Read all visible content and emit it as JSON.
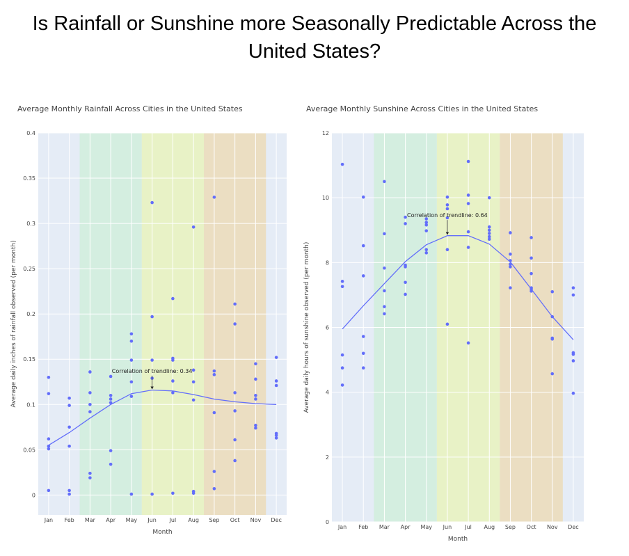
{
  "page": {
    "title_line1": "Is Rainfall or Sunshine more Seasonally Predictable Across the",
    "title_line2": "United States?"
  },
  "colors": {
    "plot_bg": "#e5ecf6",
    "grid": "#ffffff",
    "marker": "#636efa",
    "trend": "#636efa",
    "spring": "#d4eee0",
    "summer": "#e8f2c6",
    "autumn": "#ebdec2",
    "text": "#444444"
  },
  "chart_data": [
    {
      "type": "scatter",
      "title": "Average Monthly Rainfall Across Cities in the United States",
      "xlabel": "Month",
      "ylabel": "Average daily inches of rainfall observed (per month)",
      "categories": [
        "Jan",
        "Feb",
        "Mar",
        "Apr",
        "May",
        "Jun",
        "Jul",
        "Aug",
        "Sep",
        "Oct",
        "Nov",
        "Dec"
      ],
      "ylim": [
        -0.022,
        0.4
      ],
      "yticks": [
        0,
        0.05,
        0.1,
        0.15,
        0.2,
        0.25,
        0.3,
        0.35,
        0.4
      ],
      "ytick_labels": [
        "0",
        "0.05",
        "0.1",
        "0.15",
        "0.2",
        "0.25",
        "0.3",
        "0.35",
        "0.4"
      ],
      "grid": true,
      "season_bands": [
        {
          "season": "spring",
          "from": 1.5,
          "to": 4.5
        },
        {
          "season": "summer",
          "from": 4.5,
          "to": 7.5
        },
        {
          "season": "autumn",
          "from": 7.5,
          "to": 10.5
        }
      ],
      "points": [
        [
          0,
          0.13
        ],
        [
          0,
          0.112
        ],
        [
          0,
          0.062
        ],
        [
          0,
          0.054
        ],
        [
          0,
          0.051
        ],
        [
          0,
          0.005
        ],
        [
          1,
          0.107
        ],
        [
          1,
          0.099
        ],
        [
          1,
          0.075
        ],
        [
          1,
          0.054
        ],
        [
          1,
          0.005
        ],
        [
          1,
          0.001
        ],
        [
          2,
          0.136
        ],
        [
          2,
          0.113
        ],
        [
          2,
          0.1
        ],
        [
          2,
          0.092
        ],
        [
          2,
          0.024
        ],
        [
          2,
          0.019
        ],
        [
          3,
          0.131
        ],
        [
          3,
          0.11
        ],
        [
          3,
          0.106
        ],
        [
          3,
          0.102
        ],
        [
          3,
          0.049
        ],
        [
          3,
          0.034
        ],
        [
          4,
          0.178
        ],
        [
          4,
          0.17
        ],
        [
          4,
          0.149
        ],
        [
          4,
          0.125
        ],
        [
          4,
          0.109
        ],
        [
          4,
          0.001
        ],
        [
          5,
          0.323
        ],
        [
          5,
          0.197
        ],
        [
          5,
          0.149
        ],
        [
          5,
          0.129
        ],
        [
          5,
          0.001
        ],
        [
          6,
          0.217
        ],
        [
          6,
          0.151
        ],
        [
          6,
          0.149
        ],
        [
          6,
          0.126
        ],
        [
          6,
          0.113
        ],
        [
          6,
          0.002
        ],
        [
          7,
          0.296
        ],
        [
          7,
          0.138
        ],
        [
          7,
          0.125
        ],
        [
          7,
          0.105
        ],
        [
          7,
          0.004
        ],
        [
          7,
          0.002
        ],
        [
          8,
          0.329
        ],
        [
          8,
          0.137
        ],
        [
          8,
          0.133
        ],
        [
          8,
          0.091
        ],
        [
          8,
          0.026
        ],
        [
          8,
          0.007
        ],
        [
          9,
          0.211
        ],
        [
          9,
          0.189
        ],
        [
          9,
          0.113
        ],
        [
          9,
          0.093
        ],
        [
          9,
          0.061
        ],
        [
          9,
          0.038
        ],
        [
          10,
          0.145
        ],
        [
          10,
          0.128
        ],
        [
          10,
          0.11
        ],
        [
          10,
          0.106
        ],
        [
          10,
          0.077
        ],
        [
          10,
          0.074
        ],
        [
          11,
          0.152
        ],
        [
          11,
          0.126
        ],
        [
          11,
          0.121
        ],
        [
          11,
          0.068
        ],
        [
          11,
          0.066
        ],
        [
          11,
          0.063
        ]
      ],
      "trendline": [
        0.055,
        0.069,
        0.085,
        0.1,
        0.112,
        0.116,
        0.115,
        0.111,
        0.106,
        0.103,
        0.101,
        0.1
      ],
      "annotation": {
        "text": "Correlation of trendline: 0.34",
        "x": 5,
        "y": 0.116,
        "label_y": 0.135
      }
    },
    {
      "type": "scatter",
      "title": "Average Monthly Sunshine Across Cities in the United States",
      "xlabel": "Month",
      "ylabel": "Average daily hours of sunshine observed (per month)",
      "categories": [
        "Jan",
        "Feb",
        "Mar",
        "Apr",
        "May",
        "Jun",
        "Jul",
        "Aug",
        "Sep",
        "Oct",
        "Nov",
        "Dec"
      ],
      "ylim": [
        0,
        12
      ],
      "yticks": [
        0,
        2,
        4,
        6,
        8,
        10,
        12
      ],
      "ytick_labels": [
        "0",
        "2",
        "4",
        "6",
        "8",
        "10",
        "12"
      ],
      "grid": true,
      "season_bands": [
        {
          "season": "spring",
          "from": 1.5,
          "to": 4.5
        },
        {
          "season": "summer",
          "from": 4.5,
          "to": 7.5
        },
        {
          "season": "autumn",
          "from": 7.5,
          "to": 10.5
        }
      ],
      "points": [
        [
          0,
          11.03
        ],
        [
          0,
          7.42
        ],
        [
          0,
          7.26
        ],
        [
          0,
          5.15
        ],
        [
          0,
          4.75
        ],
        [
          0,
          4.22
        ],
        [
          1,
          10.02
        ],
        [
          1,
          8.52
        ],
        [
          1,
          7.59
        ],
        [
          1,
          5.72
        ],
        [
          1,
          5.2
        ],
        [
          1,
          4.75
        ],
        [
          2,
          10.5
        ],
        [
          2,
          8.89
        ],
        [
          2,
          7.83
        ],
        [
          2,
          7.13
        ],
        [
          2,
          6.64
        ],
        [
          2,
          6.42
        ],
        [
          3,
          9.4
        ],
        [
          3,
          9.2
        ],
        [
          3,
          7.92
        ],
        [
          3,
          7.87
        ],
        [
          3,
          7.39
        ],
        [
          3,
          7.02
        ],
        [
          4,
          9.35
        ],
        [
          4,
          9.24
        ],
        [
          4,
          9.16
        ],
        [
          4,
          8.98
        ],
        [
          4,
          8.4
        ],
        [
          4,
          8.3
        ],
        [
          5,
          10.02
        ],
        [
          5,
          9.78
        ],
        [
          5,
          9.66
        ],
        [
          5,
          9.38
        ],
        [
          5,
          8.4
        ],
        [
          5,
          6.1
        ],
        [
          6,
          11.12
        ],
        [
          6,
          10.08
        ],
        [
          6,
          9.82
        ],
        [
          6,
          8.95
        ],
        [
          6,
          8.47
        ],
        [
          6,
          5.52
        ],
        [
          7,
          10
        ],
        [
          7,
          9.1
        ],
        [
          7,
          9.0
        ],
        [
          7,
          8.9
        ],
        [
          7,
          8.8
        ],
        [
          7,
          8.72
        ],
        [
          8,
          8.92
        ],
        [
          8,
          8.26
        ],
        [
          8,
          8.06
        ],
        [
          8,
          7.95
        ],
        [
          8,
          7.87
        ],
        [
          8,
          7.22
        ],
        [
          9,
          8.77
        ],
        [
          9,
          8.14
        ],
        [
          9,
          7.66
        ],
        [
          9,
          7.22
        ],
        [
          9,
          7.18
        ],
        [
          9,
          7.12
        ],
        [
          10,
          7.1
        ],
        [
          10,
          6.33
        ],
        [
          10,
          5.67
        ],
        [
          10,
          5.64
        ],
        [
          10,
          4.57
        ],
        [
          11,
          7.22
        ],
        [
          11,
          7.0
        ],
        [
          11,
          5.22
        ],
        [
          11,
          5.17
        ],
        [
          11,
          4.97
        ],
        [
          11,
          3.97
        ]
      ],
      "trendline": [
        5.95,
        6.67,
        7.35,
        8.03,
        8.55,
        8.83,
        8.83,
        8.57,
        8.02,
        7.18,
        6.33,
        5.62
      ],
      "annotation": {
        "text": "Correlation of trendline: 0.64",
        "x": 5,
        "y": 8.83,
        "label_y": 9.4
      }
    }
  ]
}
